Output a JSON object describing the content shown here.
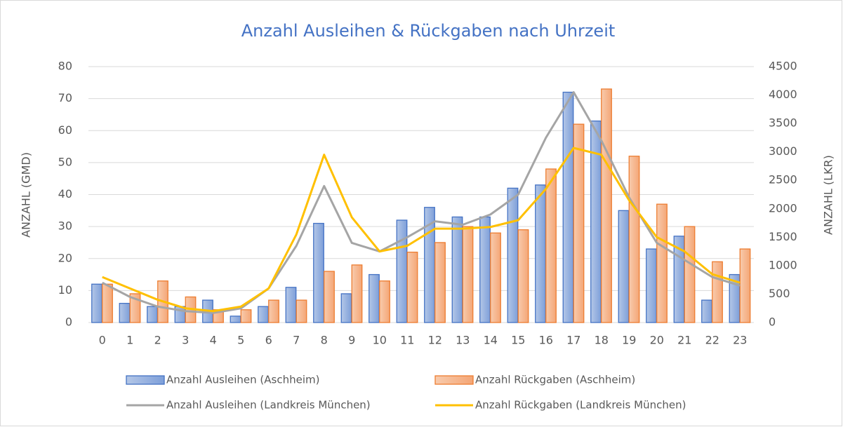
{
  "chart_data": {
    "type": "bar_line",
    "title": "Anzahl Ausleihen & Rückgaben nach Uhrzeit",
    "y_label": "ANZAHL (GMD)",
    "y2_label": "ANZAHL (LKR)",
    "categories": [
      "0",
      "1",
      "2",
      "3",
      "4",
      "5",
      "6",
      "7",
      "8",
      "9",
      "10",
      "11",
      "12",
      "13",
      "14",
      "15",
      "16",
      "17",
      "18",
      "19",
      "20",
      "21",
      "22",
      "23"
    ],
    "series": [
      {
        "name": "Anzahl Ausleihen (Aschheim)",
        "kind": "bar",
        "color": "#4472c4",
        "values": [
          12,
          6,
          5,
          5,
          7,
          2,
          5,
          11,
          31,
          9,
          15,
          32,
          36,
          33,
          33,
          42,
          43,
          72,
          63,
          35,
          23,
          27,
          7,
          15
        ]
      },
      {
        "name": "Anzahl Rückgaben (Aschheim)",
        "kind": "bar",
        "color": "#ed7d31",
        "values": [
          12,
          9,
          13,
          8,
          4,
          4,
          7,
          7,
          16,
          18,
          13,
          22,
          25,
          30,
          28,
          29,
          48,
          62,
          73,
          52,
          37,
          30,
          19,
          23
        ]
      },
      {
        "name": "Anzahl Ausleihen (Landkreis München)",
        "kind": "line",
        "axis": "y2",
        "color": "#a5a5a5",
        "values": [
          700,
          450,
          280,
          200,
          170,
          250,
          600,
          1350,
          2400,
          1400,
          1250,
          1500,
          1780,
          1720,
          1900,
          2250,
          3250,
          4050,
          3200,
          2200,
          1400,
          1100,
          800,
          650
        ]
      },
      {
        "name": "Anzahl Rückgaben (Landkreis München)",
        "kind": "line",
        "axis": "y2",
        "color": "#ffc000",
        "values": [
          800,
          600,
          400,
          250,
          200,
          280,
          600,
          1550,
          2950,
          1850,
          1250,
          1350,
          1650,
          1650,
          1680,
          1800,
          2350,
          3070,
          2950,
          2150,
          1500,
          1250,
          850,
          700
        ]
      }
    ],
    "ylim": [
      0,
      80
    ],
    "yticks": [
      0,
      10,
      20,
      30,
      40,
      50,
      60,
      70,
      80
    ],
    "y2lim": [
      0,
      4500
    ],
    "y2ticks": [
      0,
      500,
      1000,
      1500,
      2000,
      2500,
      3000,
      3500,
      4000,
      4500
    ],
    "grid": true
  }
}
